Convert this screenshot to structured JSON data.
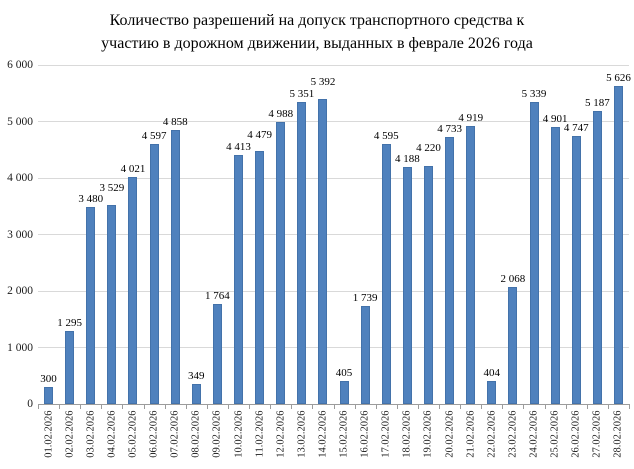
{
  "title_lines": [
    "Количество разрешений на допуск транспортного средства к",
    "участию в дорожном движении, выданных в феврале 2026 года"
  ],
  "colors": {
    "bar": "#4f81bd",
    "gridline": "#d9d9d9",
    "axis": "#9c9c9c",
    "text": "#000000"
  },
  "y_axis": {
    "tick_labels": [
      "0",
      "1 000",
      "2 000",
      "3 000",
      "4 000",
      "5 000",
      "6 000"
    ],
    "min": 0,
    "max": 6000,
    "step": 1000
  },
  "chart_data": {
    "type": "bar",
    "title": "Количество разрешений на допуск транспортного средства к участию в дорожном движении, выданных в феврале 2026 года",
    "categories": [
      "01.02.2026",
      "02.02.2026",
      "03.02.2026",
      "04.02.2026",
      "05.02.2026",
      "06.02.2026",
      "07.02.2026",
      "08.02.2026",
      "09.02.2026",
      "10.02.2026",
      "11.02.2026",
      "12.02.2026",
      "13.02.2026",
      "14.02.2026",
      "15.02.2026",
      "16.02.2026",
      "17.02.2026",
      "18.02.2026",
      "19.02.2026",
      "20.02.2026",
      "21.02.2026",
      "22.02.2026",
      "23.02.2026",
      "24.02.2026",
      "25.02.2026",
      "26.02.2026",
      "27.02.2026",
      "28.02.2026"
    ],
    "values": [
      300,
      1295,
      3480,
      3529,
      4021,
      4597,
      4858,
      349,
      1764,
      4413,
      4479,
      4988,
      5351,
      5392,
      405,
      1739,
      4595,
      4188,
      4220,
      4733,
      4919,
      404,
      2068,
      5339,
      4901,
      4747,
      5187,
      5626
    ],
    "value_labels": [
      "300",
      "1 295",
      "3 480",
      "3 529",
      "4 021",
      "4 597",
      "4 858",
      "349",
      "1 764",
      "4 413",
      "4 479",
      "4 988",
      "5 351",
      "5 392",
      "405",
      "1 739",
      "4 595",
      "4 188",
      "4 220",
      "4 733",
      "4 919",
      "404",
      "2 068",
      "5 339",
      "4 901",
      "4 747",
      "5 187",
      "5 626"
    ],
    "xlabel": "",
    "ylabel": "",
    "ylim": [
      0,
      6000
    ],
    "grid": true,
    "legend": false,
    "data_labels_shown": true,
    "x_labels_rotation_deg": 90
  }
}
